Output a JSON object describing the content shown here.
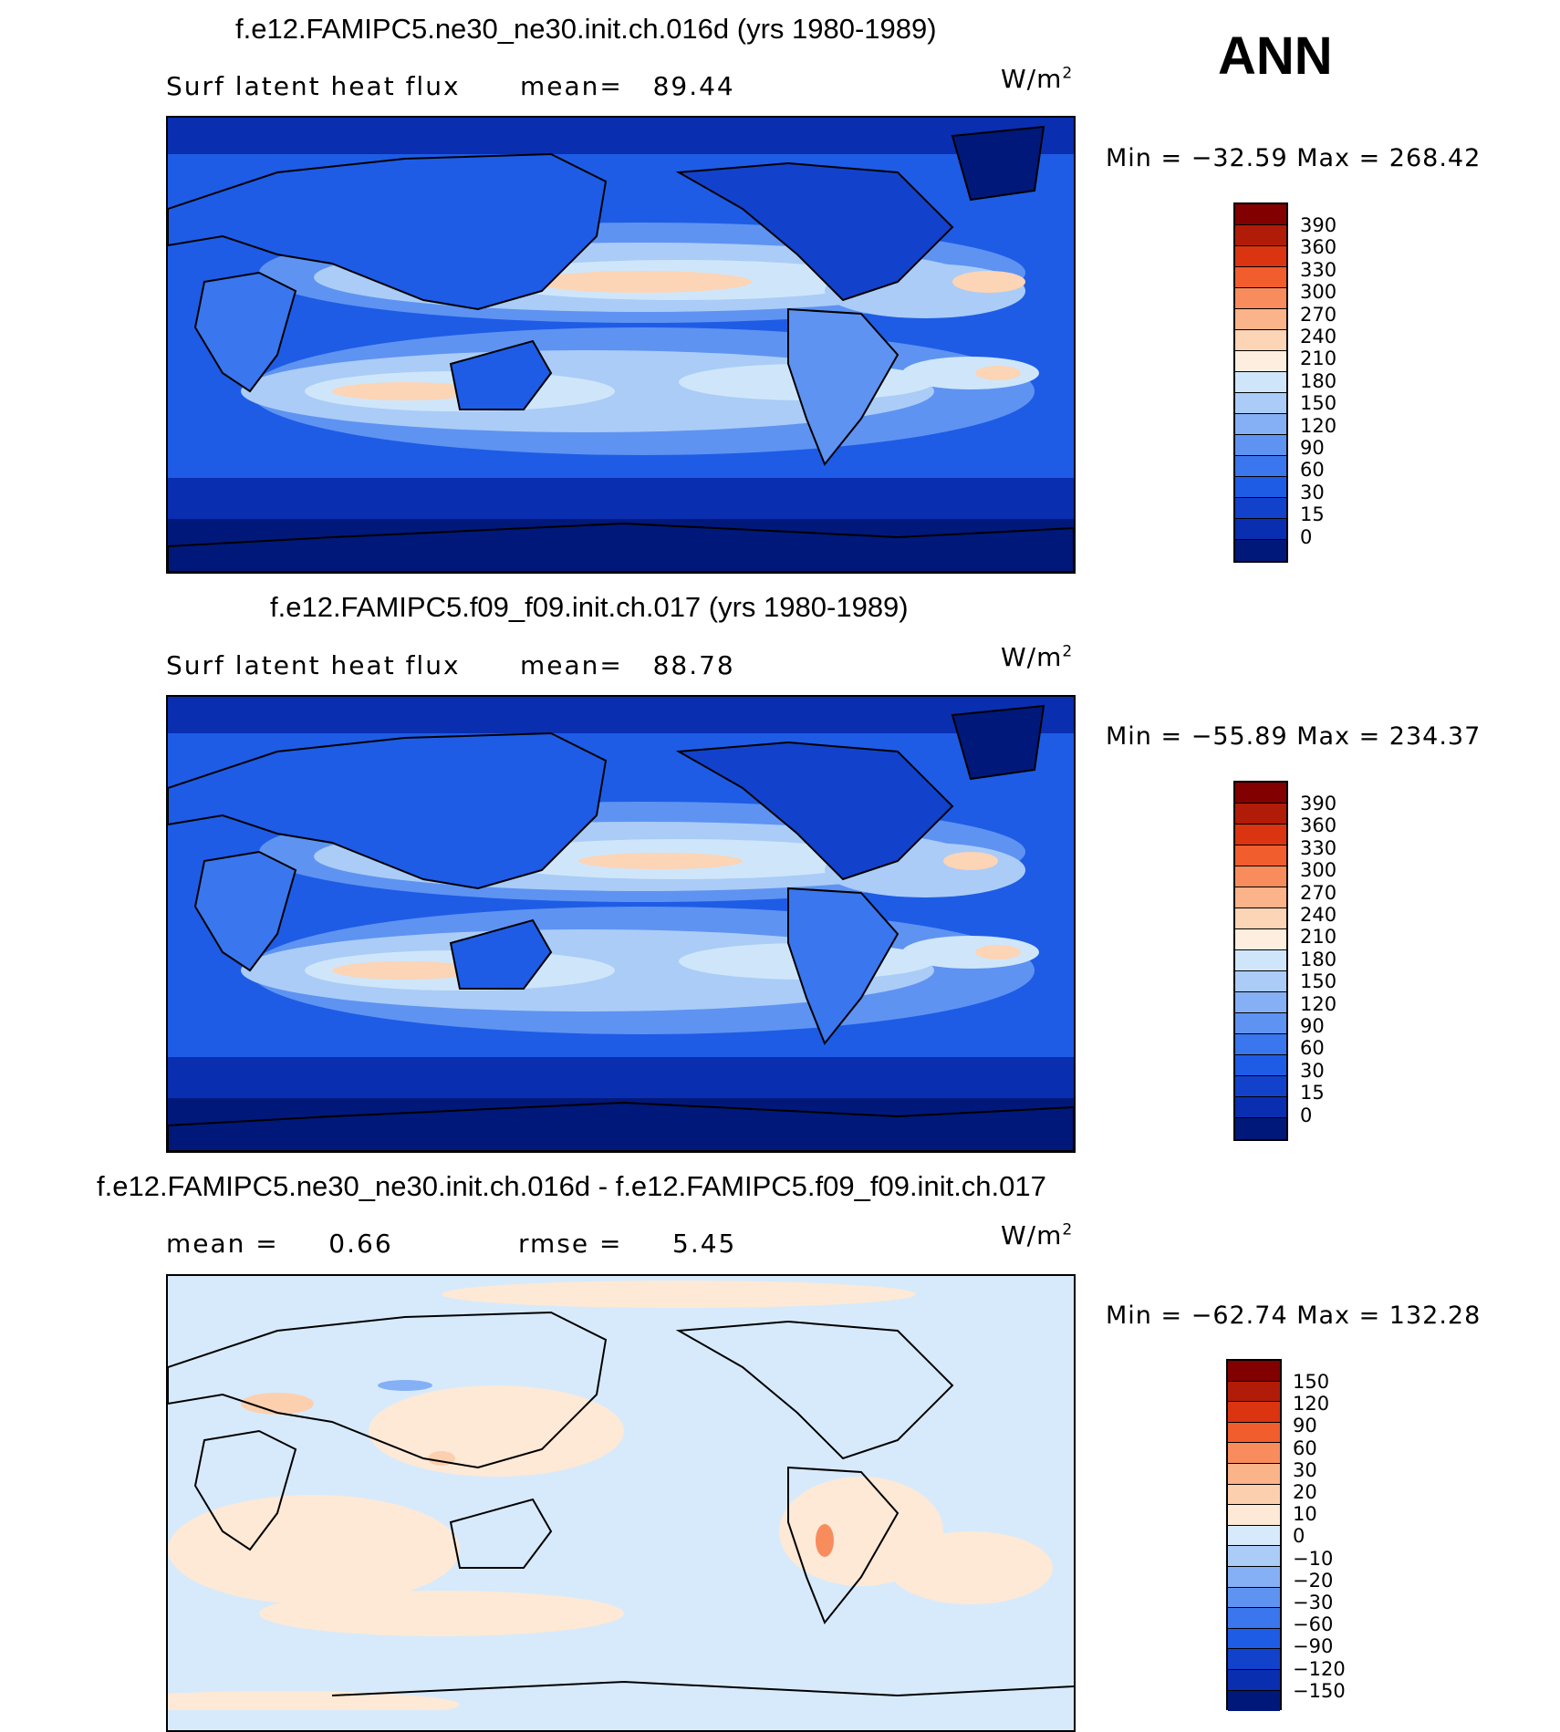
{
  "season": "ANN",
  "colors": {
    "coast": "#000000",
    "abs_scale": [
      "#00187a",
      "#0a2eb0",
      "#1242cc",
      "#1e5ce6",
      "#3a76ee",
      "#5e93f2",
      "#85b0f5",
      "#aaccf7",
      "#cfe6fa",
      "#fdeee0",
      "#fcd4b6",
      "#fbb389",
      "#f98c5d",
      "#f25d2e",
      "#da3510",
      "#b01c08",
      "#820000"
    ],
    "diff_scale": [
      "#00187a",
      "#0a2eb0",
      "#1242cc",
      "#1e5ce6",
      "#3a76ee",
      "#5e93f2",
      "#85b0f5",
      "#aaccf7",
      "#d7eafb",
      "#fde9d6",
      "#fcd0ae",
      "#fbb389",
      "#f98c5d",
      "#f25d2e",
      "#da3510",
      "#b01c08",
      "#820000"
    ]
  },
  "panels": [
    {
      "title": "f.e12.FAMIPC5.ne30_ne30.init.ch.016d (yrs 1980-1989)",
      "variable": "Surf latent heat flux",
      "stat1_label": "mean=",
      "stat1_value": "89.44",
      "units_base": "W/m",
      "units_exp": "2",
      "min_max": "Min = −32.59 Max = 268.42",
      "colorbar_ticks": [
        "390",
        "360",
        "330",
        "300",
        "270",
        "240",
        "210",
        "180",
        "150",
        "120",
        "90",
        "60",
        "30",
        "15",
        "0"
      ]
    },
    {
      "title": "f.e12.FAMIPC5.f09_f09.init.ch.017 (yrs 1980-1989)",
      "variable": "Surf latent heat flux",
      "stat1_label": "mean=",
      "stat1_value": "88.78",
      "units_base": "W/m",
      "units_exp": "2",
      "min_max": "Min = −55.89 Max = 234.37",
      "colorbar_ticks": [
        "390",
        "360",
        "330",
        "300",
        "270",
        "240",
        "210",
        "180",
        "150",
        "120",
        "90",
        "60",
        "30",
        "15",
        "0"
      ]
    },
    {
      "title": "f.e12.FAMIPC5.ne30_ne30.init.ch.016d - f.e12.FAMIPC5.f09_f09.init.ch.017",
      "stat1_label": "mean =",
      "stat1_value": "0.66",
      "stat2_label": "rmse =",
      "stat2_value": "5.45",
      "units_base": "W/m",
      "units_exp": "2",
      "min_max": "Min = −62.74 Max = 132.28",
      "colorbar_ticks": [
        "150",
        "120",
        "90",
        "60",
        "30",
        "20",
        "10",
        "0",
        "−10",
        "−20",
        "−30",
        "−60",
        "−90",
        "−120",
        "−150"
      ]
    }
  ]
}
